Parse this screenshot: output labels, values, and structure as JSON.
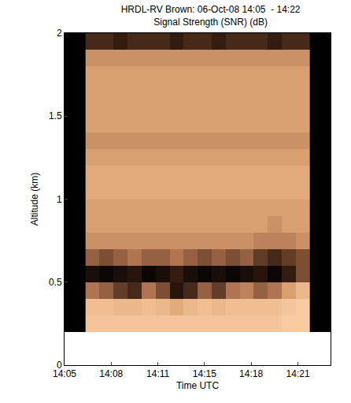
{
  "chart_data": {
    "type": "heatmap",
    "title": "HRDL-RV Brown: 06-Oct-08 14:05  - 14:22",
    "subtitle": "Signal Strength (SNR) (dB)",
    "x_label": "Time UTC",
    "y_label": "Altitude (km)",
    "x": [
      847,
      848,
      849,
      850,
      851,
      852,
      853,
      854,
      855,
      856,
      857,
      858,
      859,
      860,
      861,
      862
    ],
    "y": [
      0.25,
      0.35,
      0.45,
      0.55,
      0.65,
      0.75,
      0.85,
      0.95,
      1.05,
      1.15,
      1.25,
      1.35,
      1.45,
      1.55,
      1.65,
      1.75,
      1.85,
      1.95
    ],
    "cells": [
      [
        9,
        9,
        9,
        9,
        9,
        9,
        9,
        9,
        9,
        9,
        9,
        9,
        9,
        9,
        10,
        10
      ],
      [
        8,
        8,
        7,
        7,
        8,
        7,
        5,
        7,
        8,
        7,
        8,
        8,
        8,
        8,
        9,
        10
      ],
      [
        1,
        0,
        -2,
        -3,
        1,
        -1,
        -5,
        -3,
        0,
        -2,
        1,
        2,
        0,
        1,
        4,
        7
      ],
      [
        -6,
        -7,
        -6,
        -5,
        -7,
        -6,
        -4,
        -6,
        -7,
        -6,
        -7,
        -6,
        -5,
        -7,
        -4,
        -1
      ],
      [
        0,
        -1,
        0,
        1,
        0,
        0,
        1,
        0,
        -1,
        0,
        -1,
        0,
        -2,
        -3,
        -2,
        -1
      ],
      [
        3,
        3,
        3,
        3,
        3,
        3,
        3,
        3,
        3,
        3,
        3,
        3,
        2,
        2,
        2,
        3
      ],
      [
        4,
        4,
        4,
        4,
        4,
        4,
        4,
        4,
        4,
        4,
        4,
        4,
        4,
        3,
        4,
        4
      ],
      [
        4,
        4,
        4,
        4,
        4,
        4,
        4,
        4,
        4,
        4,
        4,
        4,
        4,
        4,
        4,
        4
      ],
      [
        5,
        5,
        5,
        5,
        5,
        5,
        5,
        5,
        5,
        5,
        5,
        5,
        5,
        5,
        5,
        5
      ],
      [
        5,
        5,
        5,
        5,
        5,
        5,
        5,
        5,
        5,
        5,
        5,
        5,
        5,
        5,
        5,
        5
      ],
      [
        4,
        4,
        4,
        4,
        4,
        4,
        4,
        4,
        4,
        4,
        4,
        4,
        4,
        4,
        4,
        4
      ],
      [
        3,
        3,
        3,
        3,
        3,
        3,
        3,
        3,
        3,
        3,
        3,
        3,
        3,
        3,
        3,
        3
      ],
      [
        4,
        4,
        4,
        4,
        4,
        4,
        4,
        4,
        4,
        4,
        4,
        4,
        4,
        4,
        4,
        4
      ],
      [
        4,
        4,
        4,
        4,
        4,
        4,
        4,
        4,
        4,
        4,
        4,
        4,
        4,
        4,
        4,
        4
      ],
      [
        4,
        4,
        4,
        4,
        4,
        4,
        4,
        4,
        4,
        4,
        4,
        4,
        4,
        4,
        4,
        4
      ],
      [
        4,
        4,
        4,
        4,
        4,
        4,
        4,
        4,
        4,
        4,
        4,
        4,
        4,
        4,
        4,
        4
      ],
      [
        3,
        3,
        3,
        3,
        3,
        3,
        3,
        3,
        3,
        3,
        3,
        3,
        3,
        3,
        3,
        3
      ],
      [
        -3,
        -3,
        -4,
        -3,
        -3,
        -3,
        -4,
        -3,
        -3,
        -4,
        -3,
        -3,
        -3,
        -4,
        -3,
        -3
      ]
    ],
    "zlim": [
      -8,
      10
    ],
    "xlim": [
      845,
      864
    ],
    "xticks": [
      {
        "value": 845,
        "label": "14:05"
      },
      {
        "value": 848.33,
        "label": "14:08"
      },
      {
        "value": 851.67,
        "label": "14:11"
      },
      {
        "value": 855,
        "label": "14:15"
      },
      {
        "value": 858.33,
        "label": "14:18"
      },
      {
        "value": 861.67,
        "label": "14:21"
      }
    ],
    "ylim": [
      0,
      2
    ],
    "yticks": [
      0,
      0.5,
      1,
      1.5,
      2
    ],
    "grid": false,
    "tick_labels": true
  }
}
